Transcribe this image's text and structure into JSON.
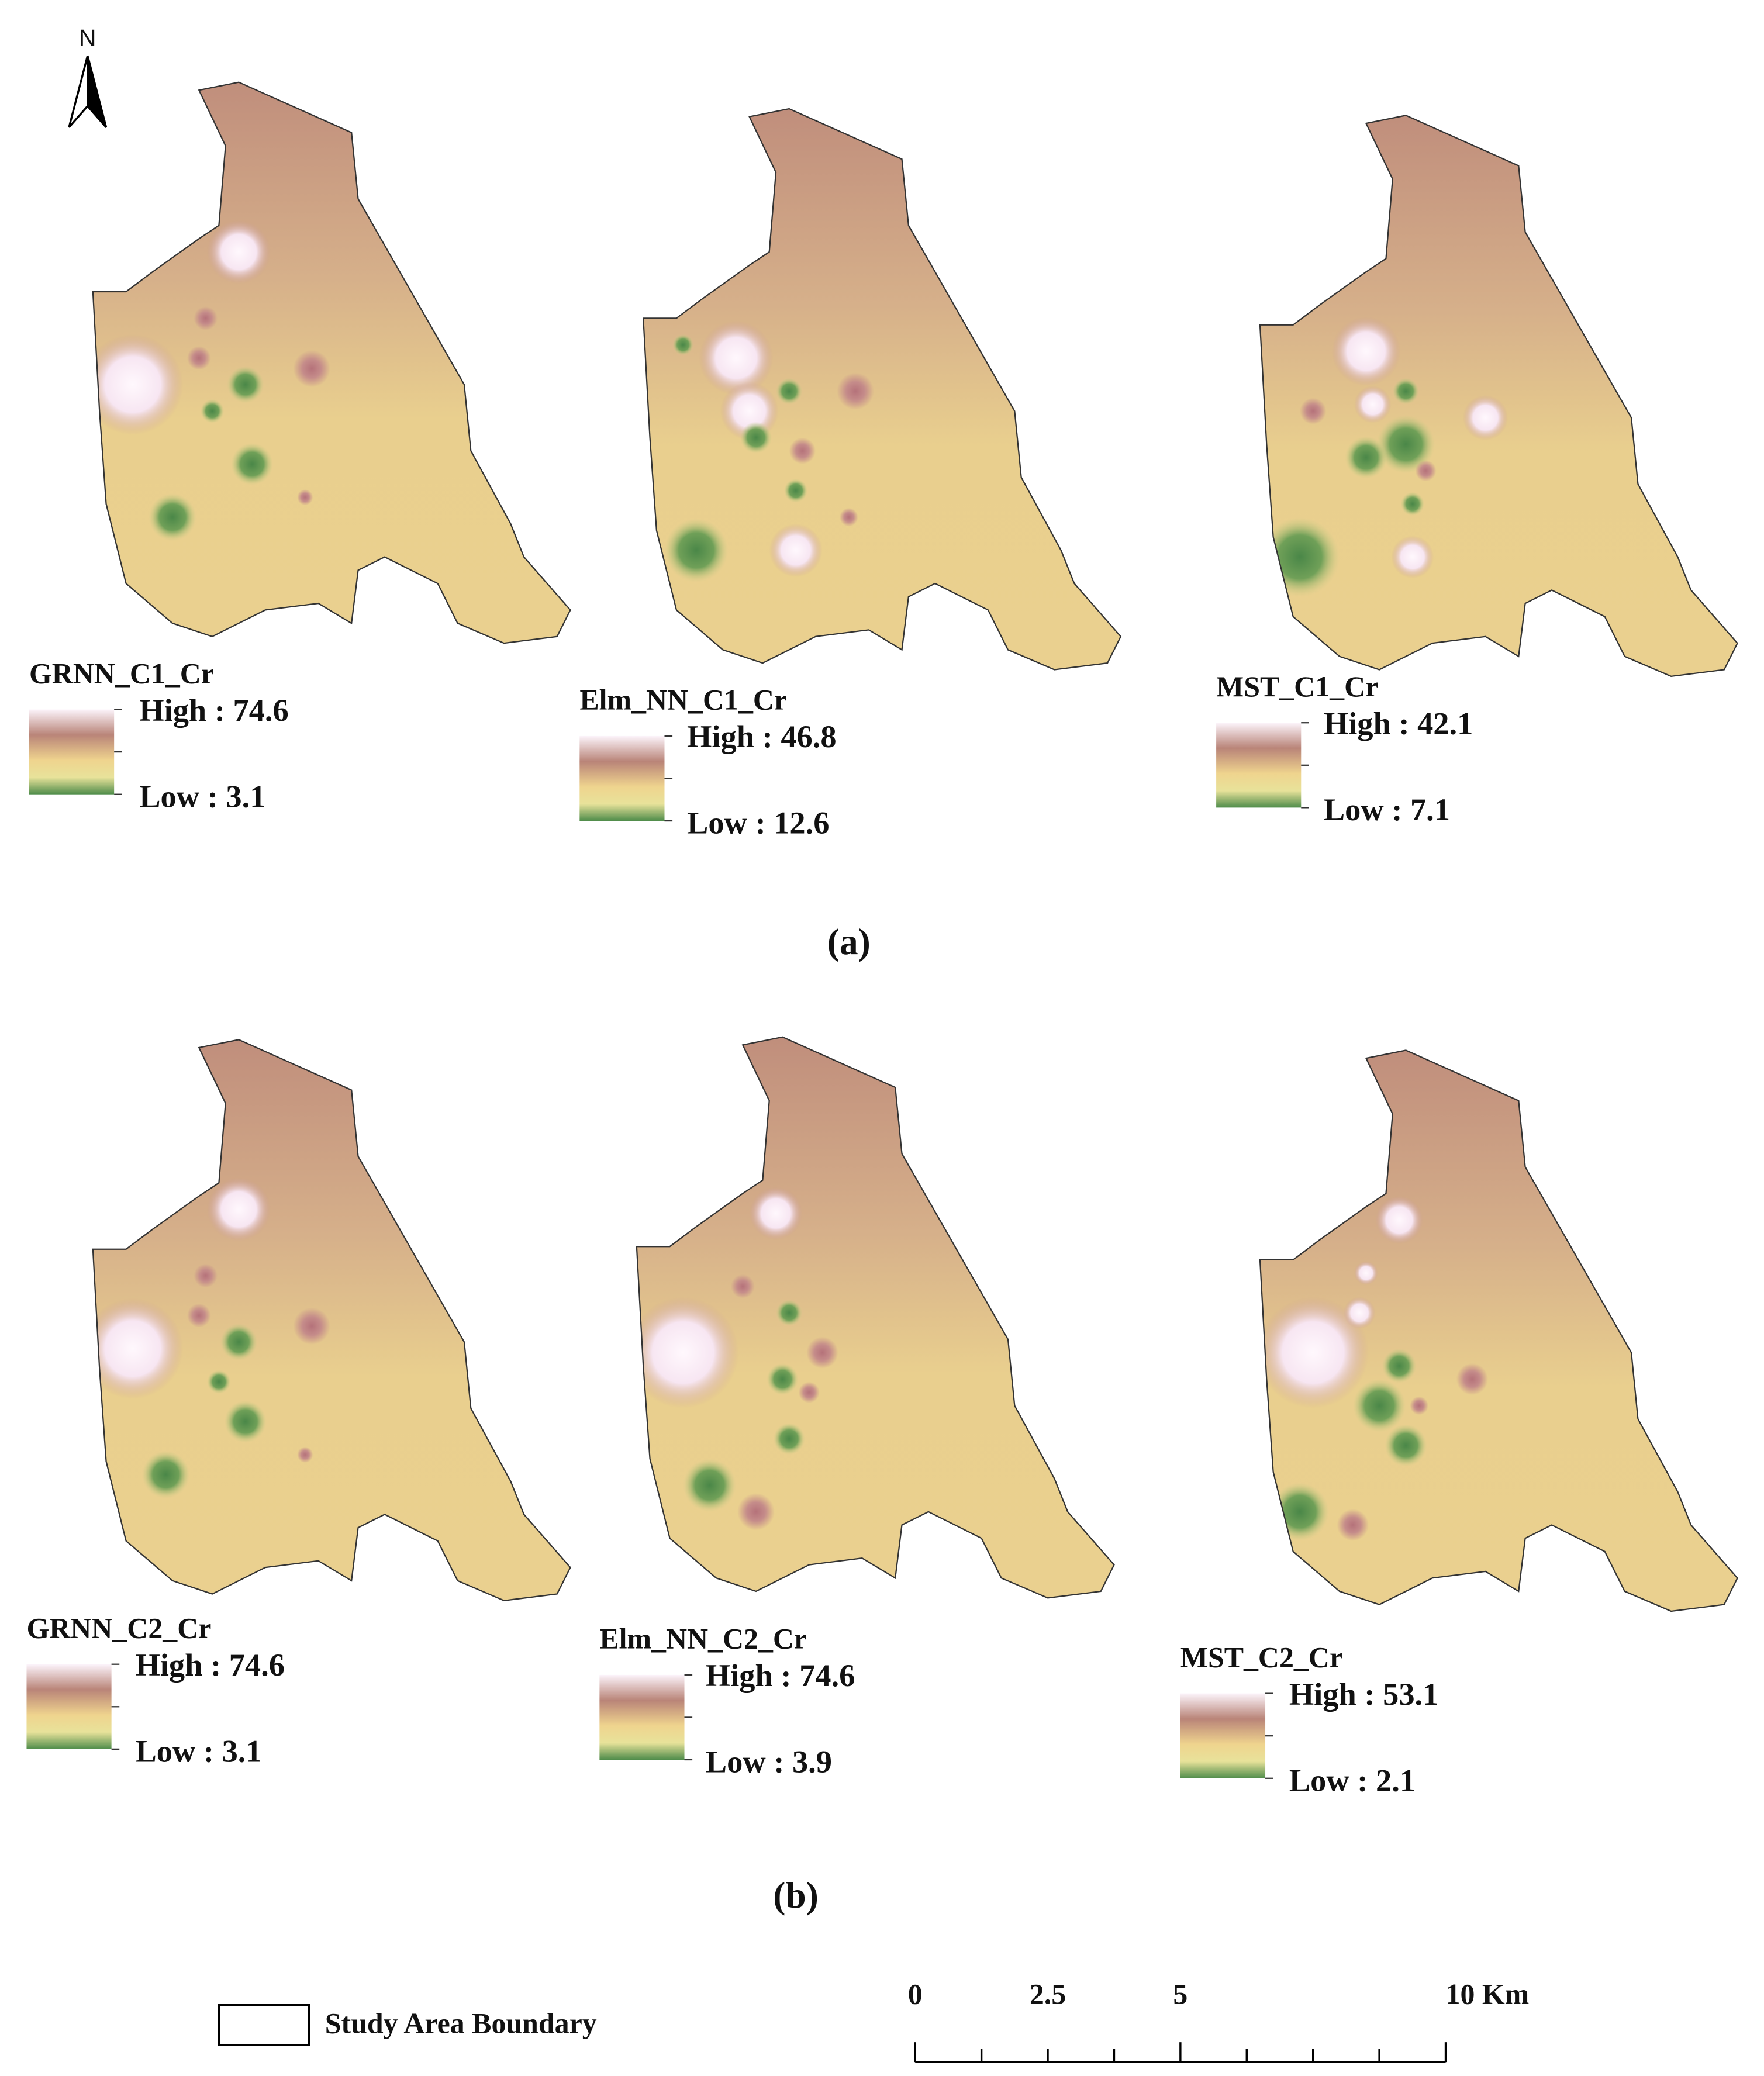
{
  "north": "N",
  "maps": [
    {
      "title": "GRNN_C1_Cr",
      "high": "High : 74.6",
      "low": "Low : 3.1"
    },
    {
      "title": "Elm_NN_C1_Cr",
      "high": "High : 46.8",
      "low": "Low : 12.6"
    },
    {
      "title": "MST_C1_Cr",
      "high": "High : 42.1",
      "low": "Low : 7.1"
    },
    {
      "title": "GRNN_C2_Cr",
      "high": "High : 74.6",
      "low": "Low : 3.1"
    },
    {
      "title": "Elm_NN_C2_Cr",
      "high": "High : 74.6",
      "low": "Low : 3.9"
    },
    {
      "title": "MST_C2_Cr",
      "high": "High : 53.1",
      "low": "Low : 2.1"
    }
  ],
  "panel_labels": [
    "(a)",
    "(b)"
  ],
  "legend": "Study Area Boundary",
  "scale_bar": [
    "0",
    "2.5",
    "5",
    "10 Km"
  ]
}
